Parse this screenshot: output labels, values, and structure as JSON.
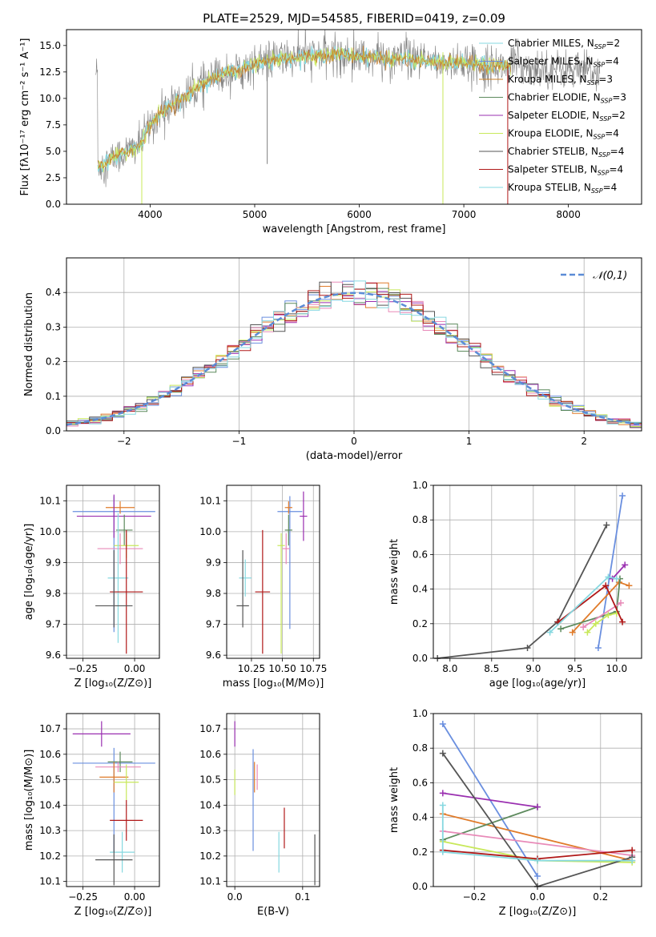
{
  "colors": {
    "chabrier_miles": "#6a8fdf",
    "salpeter_miles": "#e07b2a",
    "kroupa_miles": "#c87f2a",
    "chabrier_elodie": "#5d8a5d",
    "salpeter_elodie": "#9a2fb0",
    "kroupa_elodie": "#c8e85a",
    "chabrier_stelib": "#555555",
    "salpeter_stelib": "#b01818",
    "kroupa_stelib": "#86d8e0",
    "gaussian": "#5b8cd6",
    "pink": "#e88ab8",
    "spectrum": "#808080"
  },
  "chart_data": [
    {
      "id": "spectrum",
      "type": "line",
      "title": "PLATE=2529, MJD=54585, FIBERID=0419, z=0.09",
      "xlabel": "wavelength [Angstrom, rest frame]",
      "ylabel": "Flux [fλ10⁻¹⁷ erg cm⁻² s⁻¹ A⁻¹]",
      "xlim": [
        3200,
        8700
      ],
      "ylim": [
        0,
        16.5
      ],
      "xticks": [
        "4000",
        "5000",
        "6000",
        "7000",
        "8000"
      ],
      "yticks": [
        "0.0",
        "2.5",
        "5.0",
        "7.5",
        "10.0",
        "12.5",
        "15.0"
      ],
      "legend_position": "top-right",
      "legend": [
        {
          "label": "Chabrier MILES, N",
          "sub": "SSP",
          "suffix": "=2",
          "color_key": "kroupa_stelib"
        },
        {
          "label": "Salpeter MILES, N",
          "sub": "SSP",
          "suffix": "=4",
          "color_key": "chabrier_miles"
        },
        {
          "label": "Kroupa MILES, N",
          "sub": "SSP",
          "suffix": "=3",
          "color_key": "kroupa_miles"
        },
        {
          "label": "Chabrier ELODIE, N",
          "sub": "SSP",
          "suffix": "=3",
          "color_key": "chabrier_elodie"
        },
        {
          "label": "Salpeter ELODIE, N",
          "sub": "SSP",
          "suffix": "=2",
          "color_key": "salpeter_elodie"
        },
        {
          "label": "Kroupa ELODIE, N",
          "sub": "SSP",
          "suffix": "=4",
          "color_key": "kroupa_elodie"
        },
        {
          "label": "Chabrier STELIB, N",
          "sub": "SSP",
          "suffix": "=4",
          "color_key": "chabrier_stelib"
        },
        {
          "label": "Salpeter STELIB, N",
          "sub": "SSP",
          "suffix": "=4",
          "color_key": "salpeter_stelib"
        },
        {
          "label": "Kroupa STELIB, N",
          "sub": "SSP",
          "suffix": "=4",
          "color_key": "kroupa_stelib"
        }
      ],
      "continuum": [
        [
          3500,
          3.6
        ],
        [
          3700,
          4.6
        ],
        [
          3900,
          5.6
        ],
        [
          4000,
          7.5
        ],
        [
          4100,
          8.6
        ],
        [
          4300,
          9.9
        ],
        [
          4500,
          11.4
        ],
        [
          4700,
          12.3
        ],
        [
          5000,
          13.2
        ],
        [
          5200,
          13.7
        ],
        [
          5500,
          14.0
        ],
        [
          5800,
          14.2
        ],
        [
          6000,
          14.0
        ],
        [
          6300,
          13.8
        ],
        [
          6600,
          13.5
        ],
        [
          7000,
          13.3
        ],
        [
          7300,
          13.1
        ],
        [
          7600,
          13.0
        ],
        [
          8000,
          12.7
        ],
        [
          8300,
          12.5
        ]
      ],
      "spikes": [
        {
          "x": 5120,
          "y": 3.8,
          "color_key": "spectrum"
        },
        {
          "x": 6800,
          "y": 0,
          "color_key": "kroupa_elodie"
        },
        {
          "x": 7420,
          "y": 0,
          "color_key": "salpeter_stelib"
        },
        {
          "x": 3920,
          "y": 0,
          "color_key": "kroupa_elodie"
        }
      ]
    },
    {
      "id": "residuals",
      "type": "histogram",
      "xlabel": "(data-model)/error",
      "ylabel": "Normed distribution",
      "xlim": [
        -2.5,
        2.5
      ],
      "ylim": [
        0,
        0.5
      ],
      "xticks": [
        "−2",
        "−1",
        "0",
        "1",
        "2"
      ],
      "yticks": [
        "0.0",
        "0.1",
        "0.2",
        "0.3",
        "0.4"
      ],
      "bin_width": 0.1,
      "n_histograms": 9,
      "gaussian_label": "𝒩(0,1)",
      "legend_position": "top-right"
    },
    {
      "id": "age_vs_Z",
      "type": "errorbar",
      "xlabel": "Z [log₁₀(Z/Z⊙)]",
      "ylabel": "age  [log₁₀(age/yr)]",
      "xlim": [
        -0.33,
        0.12
      ],
      "ylim": [
        9.59,
        10.15
      ],
      "xticks": [
        "−0.25",
        "0.00"
      ],
      "xtick_values": [
        -0.25,
        0.0
      ],
      "yticks": [
        "9.6",
        "9.7",
        "9.8",
        "9.9",
        "10.0",
        "10.1"
      ],
      "ytick_values": [
        9.6,
        9.7,
        9.8,
        9.9,
        10.0,
        10.1
      ],
      "points": [
        {
          "x": -0.1,
          "y": 10.065,
          "xerr": 0.2,
          "yerr": [
            0.39,
            0.05
          ],
          "color_key": "chabrier_miles"
        },
        {
          "x": -0.07,
          "y": 10.078,
          "xerr": 0.07,
          "yerr": 0.02,
          "color_key": "salpeter_miles"
        },
        {
          "x": -0.1,
          "y": 10.05,
          "xerr": 0.18,
          "yerr": 0.07,
          "color_key": "salpeter_elodie"
        },
        {
          "x": -0.05,
          "y": 10.005,
          "xerr": 0.04,
          "yerr": 0.05,
          "color_key": "chabrier_elodie"
        },
        {
          "x": -0.04,
          "y": 9.955,
          "xerr": 0.06,
          "yerr": 0.04,
          "color_key": "kroupa_elodie"
        },
        {
          "x": -0.07,
          "y": 9.945,
          "xerr": 0.11,
          "yerr": 0.05,
          "color_key": "pink"
        },
        {
          "x": -0.08,
          "y": 9.85,
          "xerr": 0.05,
          "yerr": 0.21,
          "color_key": "kroupa_stelib"
        },
        {
          "x": -0.04,
          "y": 9.805,
          "xerr": 0.08,
          "yerr": 0.2,
          "color_key": "salpeter_stelib"
        },
        {
          "x": -0.1,
          "y": 9.76,
          "xerr": 0.09,
          "yerr": [
            0.07,
            0.18
          ],
          "color_key": "chabrier_stelib"
        }
      ]
    },
    {
      "id": "age_vs_mass",
      "type": "errorbar",
      "xlabel": "mass [log₁₀(M/M⊙)]",
      "ylabel": "",
      "xlim": [
        10.05,
        10.8
      ],
      "ylim": [
        9.59,
        10.15
      ],
      "xticks": [
        "10.25",
        "10.50",
        "10.75"
      ],
      "xtick_values": [
        10.25,
        10.5,
        10.75
      ],
      "yticks": [
        "9.6",
        "9.7",
        "9.8",
        "9.9",
        "10.0",
        "10.1"
      ],
      "ytick_values": [
        9.6,
        9.7,
        9.8,
        9.9,
        10.0,
        10.1
      ],
      "points": [
        {
          "x": 10.56,
          "y": 10.065,
          "xerr": 0.1,
          "yerr": [
            0.38,
            0.05
          ],
          "color_key": "chabrier_miles"
        },
        {
          "x": 10.55,
          "y": 10.078,
          "xerr": 0.03,
          "yerr": 0.02,
          "color_key": "salpeter_miles"
        },
        {
          "x": 10.67,
          "y": 10.05,
          "xerr": 0.03,
          "yerr": 0.08,
          "color_key": "salpeter_elodie"
        },
        {
          "x": 10.55,
          "y": 10.005,
          "xerr": 0.03,
          "yerr": 0.05,
          "color_key": "chabrier_elodie"
        },
        {
          "x": 10.49,
          "y": 9.955,
          "xerr": 0.03,
          "yerr": [
            0.35,
            0.04
          ],
          "color_key": "kroupa_elodie"
        },
        {
          "x": 10.53,
          "y": 9.945,
          "xerr": 0.03,
          "yerr": 0.05,
          "color_key": "pink"
        },
        {
          "x": 10.2,
          "y": 9.85,
          "xerr": 0.05,
          "yerr": 0.06,
          "color_key": "kroupa_stelib"
        },
        {
          "x": 10.34,
          "y": 9.805,
          "xerr": 0.06,
          "yerr": 0.2,
          "color_key": "salpeter_stelib"
        },
        {
          "x": 10.18,
          "y": 9.76,
          "xerr": 0.05,
          "yerr": [
            0.07,
            0.18
          ],
          "color_key": "chabrier_stelib"
        }
      ]
    },
    {
      "id": "weight_vs_age",
      "type": "line",
      "xlabel": "age  [log₁₀(age/yr)]",
      "ylabel": "mass weight",
      "xlim": [
        7.8,
        10.3
      ],
      "ylim": [
        0,
        1
      ],
      "xticks": [
        "8.0",
        "8.5",
        "9.0",
        "9.5",
        "10.0"
      ],
      "xtick_values": [
        8.0,
        8.5,
        9.0,
        9.5,
        10.0
      ],
      "yticks": [
        "0.0",
        "0.2",
        "0.4",
        "0.6",
        "0.8",
        "1.0"
      ],
      "ytick_values": [
        0,
        0.2,
        0.4,
        0.6,
        0.8,
        1.0
      ],
      "series": [
        {
          "color_key": "chabrier_miles",
          "points": [
            [
              9.78,
              0.06
            ],
            [
              10.07,
              0.94
            ]
          ]
        },
        {
          "color_key": "salpeter_miles",
          "points": [
            [
              9.47,
              0.15
            ],
            [
              10.03,
              0.44
            ],
            [
              10.15,
              0.42
            ]
          ]
        },
        {
          "color_key": "chabrier_elodie",
          "points": [
            [
              9.33,
              0.17
            ],
            [
              10.0,
              0.27
            ],
            [
              10.04,
              0.46
            ]
          ]
        },
        {
          "color_key": "salpeter_elodie",
          "points": [
            [
              9.95,
              0.46
            ],
            [
              10.1,
              0.54
            ]
          ]
        },
        {
          "color_key": "kroupa_elodie",
          "points": [
            [
              9.65,
              0.15
            ],
            [
              9.75,
              0.2
            ],
            [
              9.9,
              0.25
            ],
            [
              10.0,
              0.26
            ]
          ]
        },
        {
          "color_key": "pink",
          "points": [
            [
              9.6,
              0.18
            ],
            [
              10.05,
              0.32
            ]
          ]
        },
        {
          "color_key": "chabrier_stelib",
          "points": [
            [
              7.85,
              0.0
            ],
            [
              8.93,
              0.06
            ],
            [
              9.29,
              0.21
            ],
            [
              9.88,
              0.77
            ]
          ]
        },
        {
          "color_key": "salpeter_stelib",
          "points": [
            [
              9.3,
              0.21
            ],
            [
              9.87,
              0.42
            ],
            [
              10.07,
              0.21
            ]
          ]
        },
        {
          "color_key": "kroupa_stelib",
          "points": [
            [
              9.2,
              0.15
            ],
            [
              9.9,
              0.47
            ],
            [
              10.0,
              0.46
            ]
          ]
        }
      ]
    },
    {
      "id": "mass_vs_Z",
      "type": "errorbar",
      "xlabel": "Z [log₁₀(Z/Z⊙)]",
      "ylabel": "mass [log₁₀(M/M⊙)]",
      "xlim": [
        -0.33,
        0.12
      ],
      "ylim": [
        10.08,
        10.76
      ],
      "xticks": [
        "−0.25",
        "0.00"
      ],
      "xtick_values": [
        -0.25,
        0.0
      ],
      "yticks": [
        "10.1",
        "10.2",
        "10.3",
        "10.4",
        "10.5",
        "10.6",
        "10.7"
      ],
      "ytick_values": [
        10.1,
        10.2,
        10.3,
        10.4,
        10.5,
        10.6,
        10.7
      ],
      "points": [
        {
          "x": -0.16,
          "y": 10.68,
          "xerr": 0.14,
          "yerr": 0.05,
          "color_key": "salpeter_elodie"
        },
        {
          "x": -0.1,
          "y": 10.565,
          "xerr": 0.2,
          "yerr": [
            0.35,
            0.06
          ],
          "color_key": "chabrier_miles"
        },
        {
          "x": -0.07,
          "y": 10.57,
          "xerr": 0.06,
          "yerr": 0.04,
          "color_key": "chabrier_elodie"
        },
        {
          "x": -0.08,
          "y": 10.55,
          "xerr": 0.11,
          "yerr": 0.02,
          "color_key": "pink"
        },
        {
          "x": -0.1,
          "y": 10.51,
          "xerr": 0.07,
          "yerr": 0.06,
          "color_key": "salpeter_miles"
        },
        {
          "x": -0.04,
          "y": 10.49,
          "xerr": 0.06,
          "yerr": 0.07,
          "color_key": "kroupa_elodie"
        },
        {
          "x": -0.04,
          "y": 10.34,
          "xerr": 0.08,
          "yerr": 0.08,
          "color_key": "salpeter_stelib"
        },
        {
          "x": -0.06,
          "y": 10.215,
          "xerr": 0.06,
          "yerr": 0.08,
          "color_key": "kroupa_stelib"
        },
        {
          "x": -0.1,
          "y": 10.185,
          "xerr": 0.09,
          "yerr": 0.1,
          "color_key": "chabrier_stelib"
        }
      ]
    },
    {
      "id": "mass_vs_ebv",
      "type": "errorbar",
      "xlabel": "E(B-V)",
      "ylabel": "",
      "xlim": [
        -0.012,
        0.125
      ],
      "ylim": [
        10.08,
        10.76
      ],
      "xticks": [
        "0.0",
        "0.1"
      ],
      "xtick_values": [
        0.0,
        0.1
      ],
      "yticks": [
        "10.1",
        "10.2",
        "10.3",
        "10.4",
        "10.5",
        "10.6",
        "10.7"
      ],
      "ytick_values": [
        10.1,
        10.2,
        10.3,
        10.4,
        10.5,
        10.6,
        10.7
      ],
      "points": [
        {
          "x": 0.0,
          "y": 10.68,
          "xerr": 0,
          "yerr": 0.05,
          "color_key": "salpeter_elodie"
        },
        {
          "x": 0.0,
          "y": 10.49,
          "xerr": 0,
          "yerr": 0.05,
          "color_key": "kroupa_elodie"
        },
        {
          "x": 0.027,
          "y": 10.42,
          "xerr": 0,
          "yerr": 0.2,
          "color_key": "chabrier_miles"
        },
        {
          "x": 0.029,
          "y": 10.51,
          "xerr": 0,
          "yerr": 0.06,
          "color_key": "salpeter_miles"
        },
        {
          "x": 0.033,
          "y": 10.51,
          "xerr": 0,
          "yerr": 0.05,
          "color_key": "pink"
        },
        {
          "x": 0.065,
          "y": 10.215,
          "xerr": 0,
          "yerr": 0.08,
          "color_key": "kroupa_stelib"
        },
        {
          "x": 0.073,
          "y": 10.31,
          "xerr": 0,
          "yerr": 0.08,
          "color_key": "salpeter_stelib"
        },
        {
          "x": 0.118,
          "y": 10.185,
          "xerr": 0,
          "yerr": 0.1,
          "color_key": "chabrier_stelib"
        }
      ]
    },
    {
      "id": "weight_vs_Z",
      "type": "line",
      "xlabel": "Z [log₁₀(Z/Z⊙)]",
      "ylabel": "mass weight",
      "xlim": [
        -0.33,
        0.33
      ],
      "ylim": [
        0,
        1
      ],
      "xticks": [
        "−0.2",
        "0.0",
        "0.2"
      ],
      "xtick_values": [
        -0.2,
        0.0,
        0.2
      ],
      "yticks": [
        "0.0",
        "0.2",
        "0.4",
        "0.6",
        "0.8",
        "1.0"
      ],
      "ytick_values": [
        0,
        0.2,
        0.4,
        0.6,
        0.8,
        1.0
      ],
      "series": [
        {
          "color_key": "chabrier_miles",
          "points": [
            [
              -0.3,
              0.94
            ],
            [
              0.0,
              0.06
            ]
          ]
        },
        {
          "color_key": "salpeter_miles",
          "points": [
            [
              -0.3,
              0.42
            ],
            [
              0.3,
              0.15
            ]
          ]
        },
        {
          "color_key": "chabrier_elodie",
          "points": [
            [
              -0.3,
              0.27
            ],
            [
              0.0,
              0.46
            ]
          ]
        },
        {
          "color_key": "salpeter_elodie",
          "points": [
            [
              -0.3,
              0.54
            ],
            [
              0.0,
              0.46
            ]
          ]
        },
        {
          "color_key": "kroupa_elodie",
          "points": [
            [
              -0.3,
              0.26
            ],
            [
              0.0,
              0.15
            ],
            [
              0.3,
              0.14
            ]
          ]
        },
        {
          "color_key": "pink",
          "points": [
            [
              -0.3,
              0.32
            ],
            [
              0.3,
              0.18
            ]
          ]
        },
        {
          "color_key": "chabrier_stelib",
          "points": [
            [
              -0.3,
              0.77
            ],
            [
              0.0,
              0.0
            ],
            [
              0.3,
              0.17
            ]
          ]
        },
        {
          "color_key": "salpeter_stelib",
          "points": [
            [
              -0.3,
              0.21
            ],
            [
              0.0,
              0.16
            ],
            [
              0.3,
              0.21
            ]
          ]
        },
        {
          "color_key": "kroupa_stelib",
          "points": [
            [
              -0.3,
              0.47
            ],
            [
              -0.3,
              0.2
            ],
            [
              0.0,
              0.15
            ],
            [
              0.3,
              0.15
            ]
          ]
        }
      ]
    }
  ]
}
